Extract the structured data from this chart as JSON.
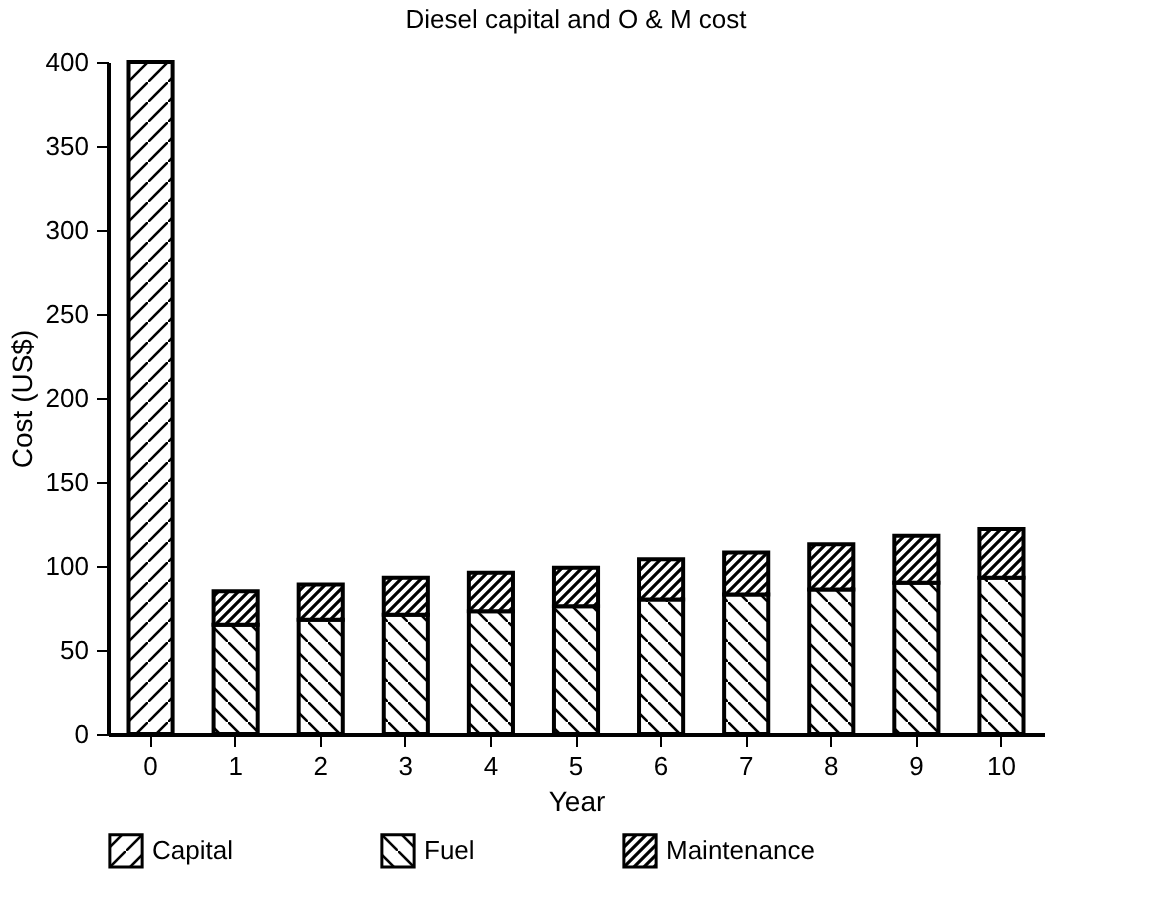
{
  "chart_data": {
    "type": "bar",
    "title": "Diesel capital and O & M cost",
    "xlabel": "Year",
    "ylabel": "Cost (US$)",
    "categories": [
      "0",
      "1",
      "2",
      "3",
      "4",
      "5",
      "6",
      "7",
      "8",
      "9",
      "10"
    ],
    "stacked": true,
    "series": [
      {
        "name": "Capital",
        "color": "#000000",
        "values": [
          400,
          null,
          null,
          null,
          null,
          null,
          null,
          null,
          null,
          null,
          null
        ]
      },
      {
        "name": "Fuel",
        "color": "#000000",
        "values": [
          null,
          65,
          68,
          71,
          73,
          76,
          80,
          83,
          86,
          90,
          93
        ]
      },
      {
        "name": "Maintenance",
        "color": "#000000",
        "values": [
          null,
          20,
          21,
          22,
          23,
          23,
          24,
          25,
          27,
          28,
          29
        ]
      }
    ],
    "ylim": [
      0,
      400
    ],
    "yticks": [
      0,
      50,
      100,
      150,
      200,
      250,
      300,
      350,
      400
    ],
    "grid": false,
    "legend": "bottom"
  }
}
